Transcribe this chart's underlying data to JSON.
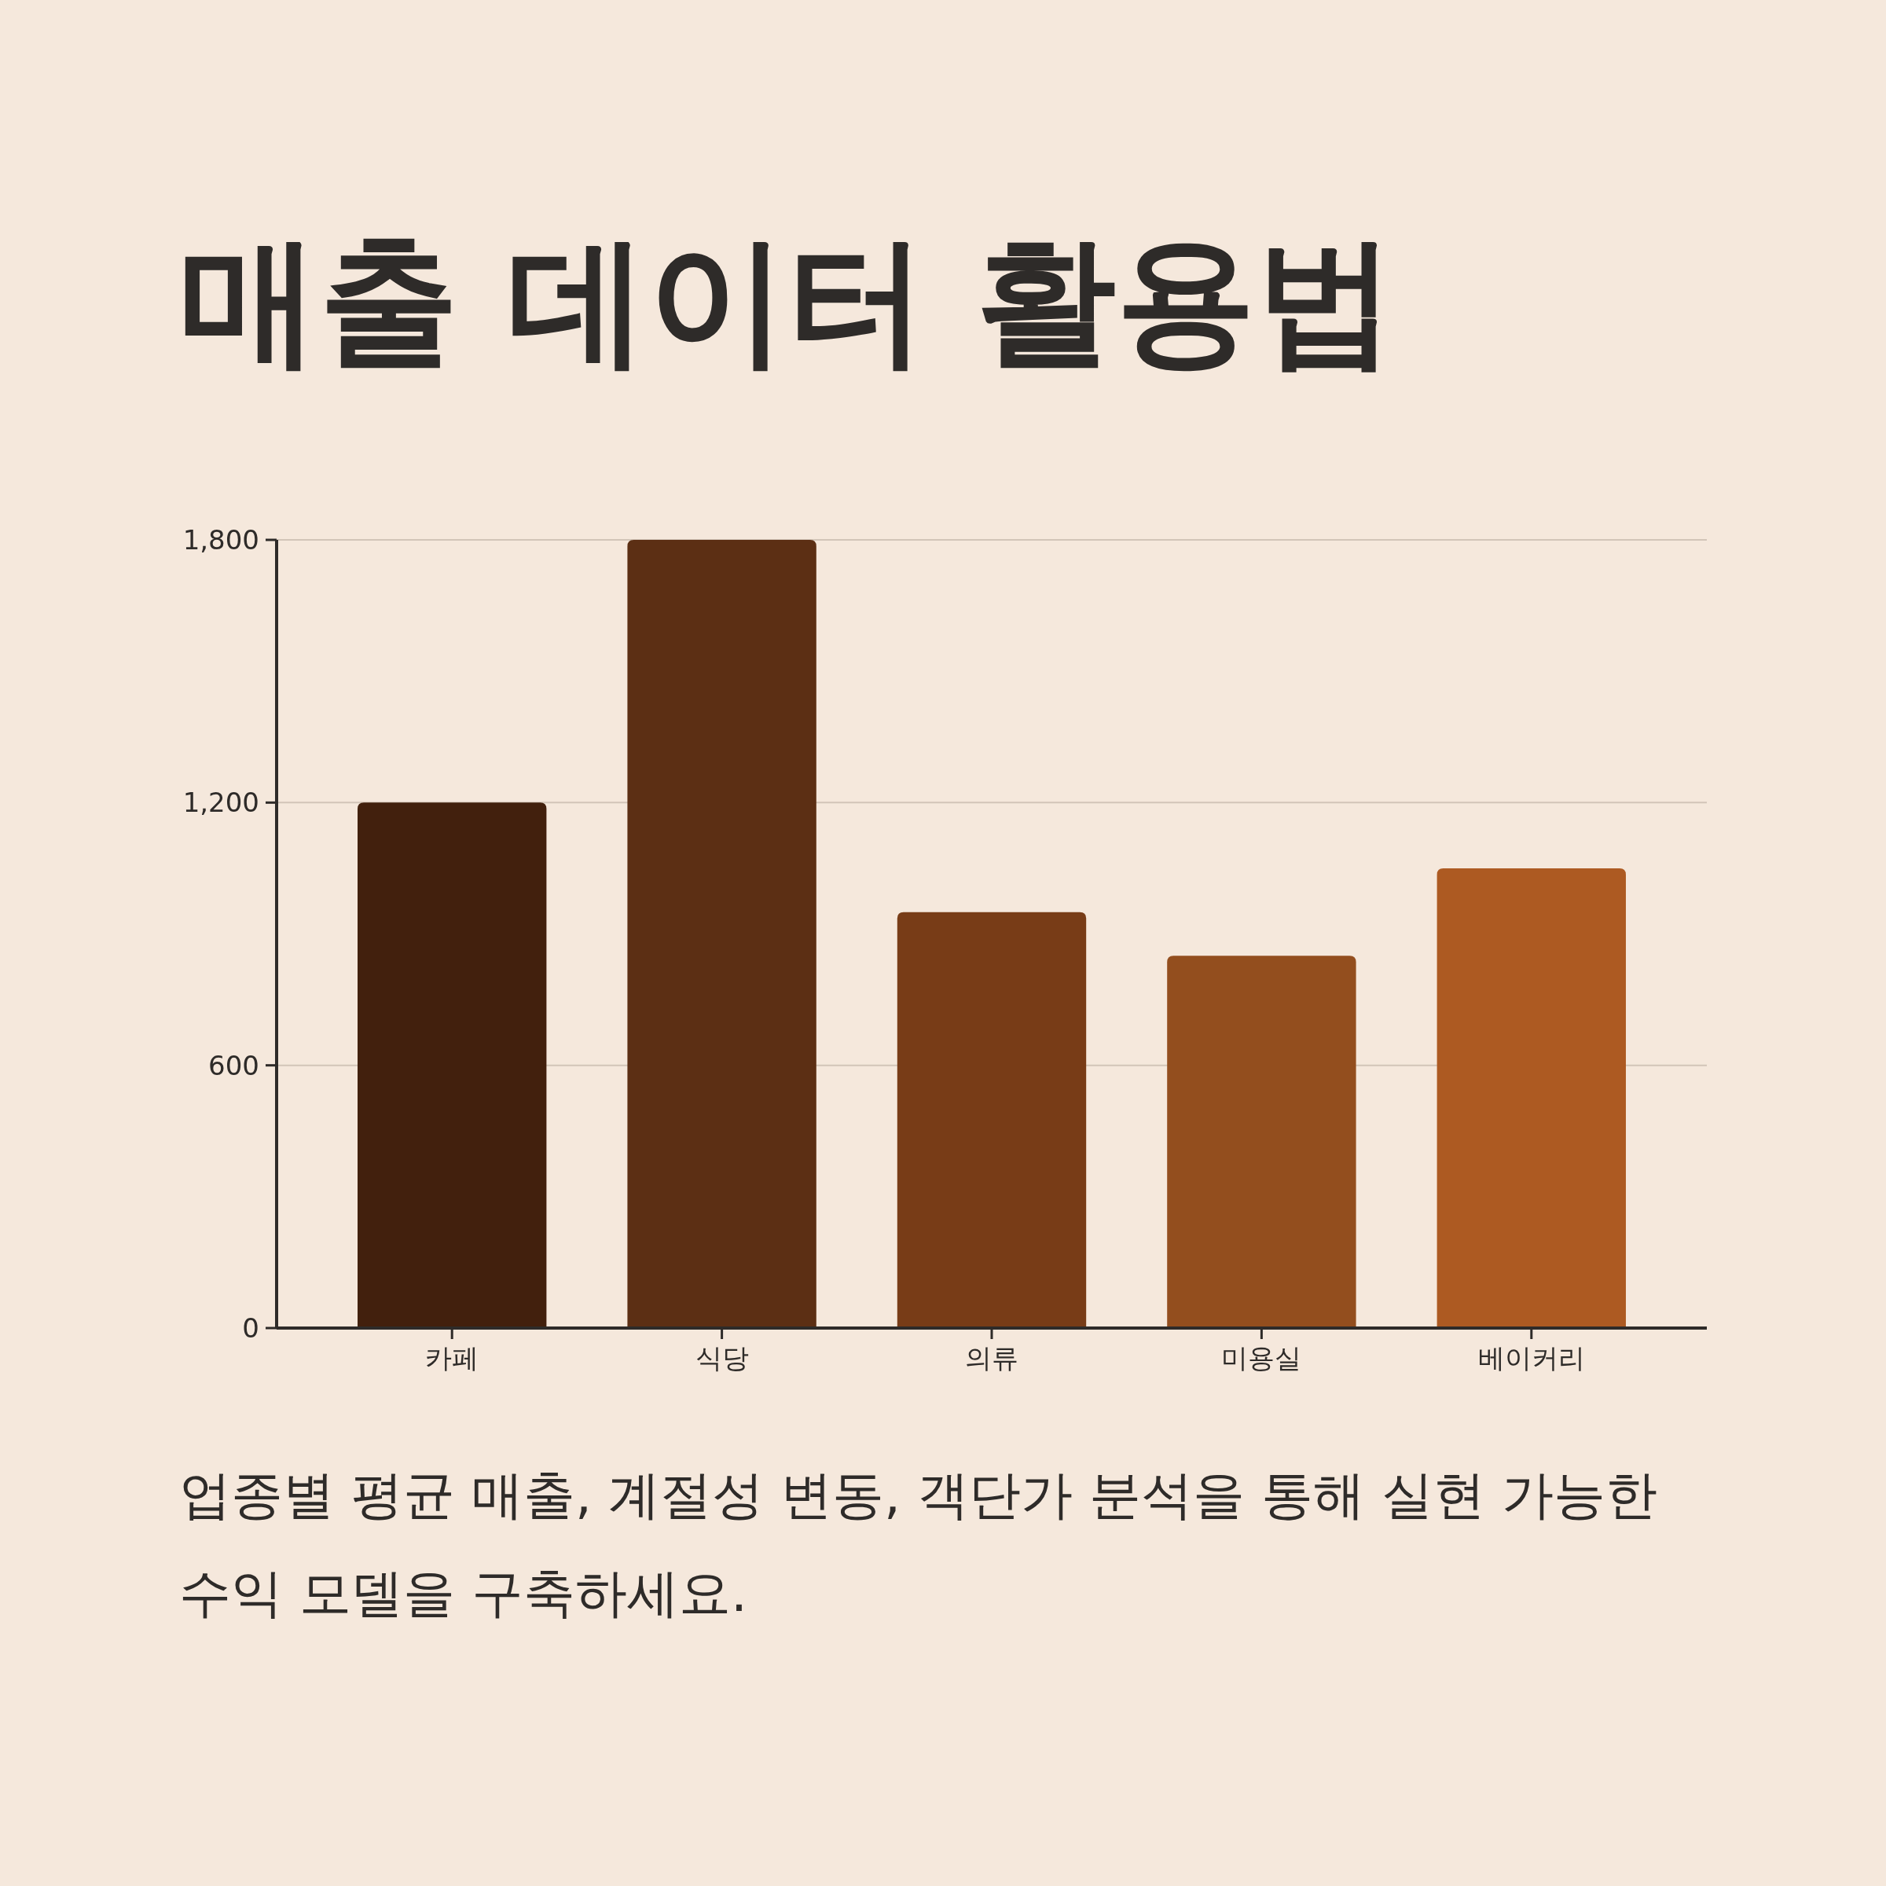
{
  "chart_data": {
    "type": "bar",
    "title": "매출 데이터 활용법",
    "subtitle": "업종별 평균 매출, 계절성 변동, 객단가 분석을 통해 실현 가능한 수익 모델을 구축하세요.",
    "categories": [
      "카페",
      "식당",
      "의류",
      "미용실",
      "베이커리"
    ],
    "values": [
      1200,
      1800,
      950,
      850,
      1050
    ],
    "colors": [
      "#42200d",
      "#5c2f14",
      "#783c17",
      "#934e1e",
      "#ad5a22"
    ],
    "ylim": [
      0,
      1800
    ],
    "yticks": [
      0,
      {
        "value": 600,
        "label": "600"
      },
      {
        "value": 1200,
        "label": "1,200"
      },
      {
        "value": 1800,
        "label": "1,800"
      }
    ],
    "grid": "y"
  }
}
